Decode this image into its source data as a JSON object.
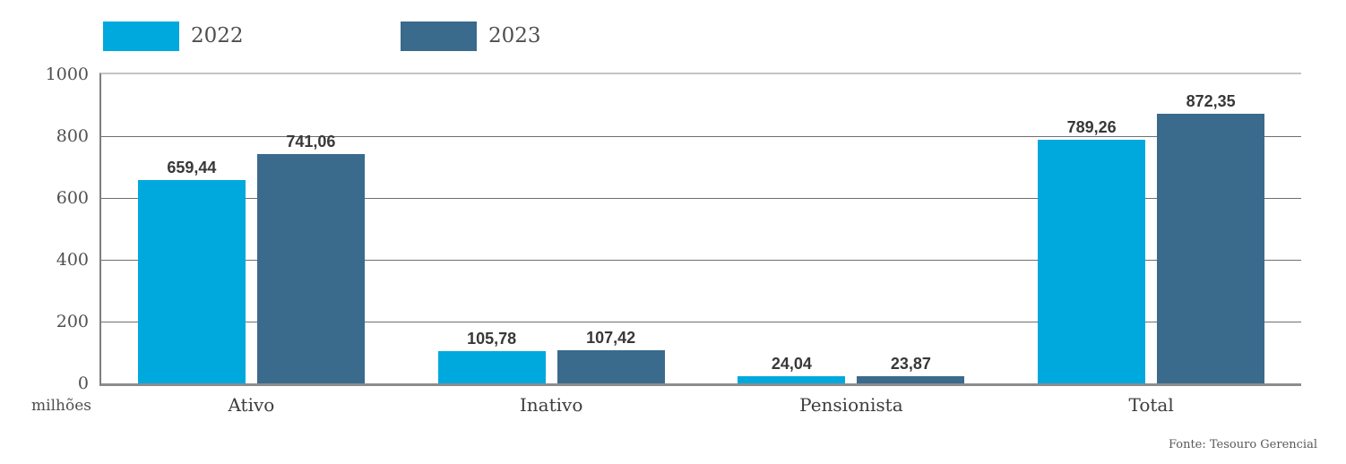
{
  "chart_data": {
    "type": "bar",
    "title": "",
    "categories": [
      "Ativo",
      "Inativo",
      "Pensionista",
      "Total"
    ],
    "series": [
      {
        "name": "2022",
        "color": "#00A9DD",
        "values": [
          659.44,
          105.78,
          24.04,
          789.26
        ]
      },
      {
        "name": "2023",
        "color": "#3A6A8C",
        "values": [
          741.06,
          107.42,
          23.87,
          872.35
        ]
      }
    ],
    "value_labels": {
      "2022": [
        "659,44",
        "105,78",
        "24,04",
        "789,26"
      ],
      "2023": [
        "741,06",
        "107,42",
        "23,87",
        "872,35"
      ]
    },
    "y_unit": "milhões",
    "ylim": [
      0,
      1000
    ],
    "y_ticks": [
      0,
      200,
      400,
      600,
      800,
      1000
    ],
    "grid": "horizontal",
    "legend_position": "top-left",
    "decimal_separator": ",",
    "source": "Fonte: Tesouro Gerencial"
  },
  "colors": {
    "series_2022": "#00A9DD",
    "series_2023": "#3A6A8C",
    "gridline": "#6F6F6F",
    "axis_left": "#7D7D7D",
    "axis_top": "#C4C4C4",
    "axis_bottom": "#8C8C8C",
    "tick_text": "#4F4F4F",
    "category_text": "#3D3D3D",
    "value_text": "#383838",
    "source_text": "#595959"
  }
}
